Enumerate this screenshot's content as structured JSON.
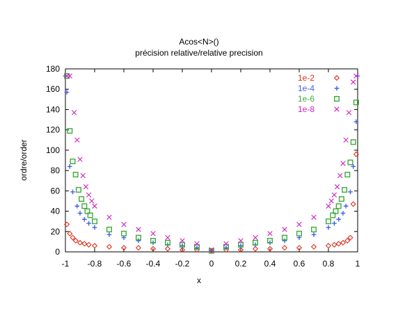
{
  "chart_data": {
    "type": "scatter",
    "title": "Acos<N>()",
    "subtitle": "précision relative/relative precision",
    "xlabel": "x",
    "ylabel": "ordre/order",
    "xlim": [
      -1,
      1
    ],
    "ylim": [
      0,
      180
    ],
    "xticks": [
      "-1",
      "-0.8",
      "-0.6",
      "-0.4",
      "-0.2",
      "0",
      "0.2",
      "0.4",
      "0.6",
      "0.8",
      "1"
    ],
    "yticks": [
      "0",
      "20",
      "40",
      "60",
      "80",
      "100",
      "120",
      "140",
      "160",
      "180"
    ],
    "legend_position": "top-right",
    "grid": false,
    "series": [
      {
        "name": "1e-2",
        "marker": "diamond",
        "color": "#e0301e",
        "x": [
          -0.99,
          -0.97,
          -0.95,
          -0.93,
          -0.9,
          -0.87,
          -0.84,
          -0.8,
          -0.7,
          -0.6,
          -0.5,
          -0.4,
          -0.3,
          -0.2,
          -0.1,
          0,
          0.1,
          0.2,
          0.3,
          0.4,
          0.5,
          0.6,
          0.7,
          0.8,
          0.84,
          0.87,
          0.9,
          0.93,
          0.95,
          0.97,
          0.99
        ],
        "y": [
          27,
          18,
          14,
          11,
          9,
          8,
          7,
          6,
          5,
          4,
          4,
          3,
          3,
          2,
          2,
          1,
          2,
          2,
          3,
          3,
          4,
          4,
          5,
          6,
          7,
          8,
          9,
          11,
          14,
          47,
          96
        ]
      },
      {
        "name": "1e-4",
        "marker": "plus",
        "color": "#4060e8",
        "x": [
          -1,
          -0.99,
          -0.97,
          -0.95,
          -0.92,
          -0.9,
          -0.87,
          -0.84,
          -0.8,
          -0.7,
          -0.6,
          -0.5,
          -0.4,
          -0.3,
          -0.2,
          -0.1,
          0,
          0.1,
          0.2,
          0.3,
          0.4,
          0.5,
          0.6,
          0.7,
          0.8,
          0.84,
          0.87,
          0.9,
          0.92,
          0.95,
          0.97,
          0.99,
          1
        ],
        "y": [
          173,
          157,
          84,
          59,
          45,
          38,
          32,
          28,
          24,
          17,
          14,
          11,
          9,
          7,
          6,
          4,
          1,
          4,
          6,
          7,
          9,
          11,
          14,
          17,
          24,
          28,
          32,
          38,
          45,
          59,
          84,
          128,
          173
        ]
      },
      {
        "name": "1e-6",
        "marker": "square",
        "color": "#3caa3c",
        "x": [
          -0.99,
          -0.97,
          -0.95,
          -0.93,
          -0.91,
          -0.89,
          -0.87,
          -0.85,
          -0.83,
          -0.8,
          -0.7,
          -0.6,
          -0.5,
          -0.4,
          -0.3,
          -0.2,
          -0.1,
          0,
          0.1,
          0.2,
          0.3,
          0.4,
          0.5,
          0.6,
          0.7,
          0.8,
          0.83,
          0.85,
          0.87,
          0.89,
          0.91,
          0.93,
          0.95,
          0.97,
          0.99
        ],
        "y": [
          173,
          119,
          89,
          76,
          61,
          52,
          45,
          40,
          36,
          30,
          22,
          18,
          14,
          11,
          9,
          7,
          5,
          1,
          5,
          7,
          9,
          11,
          14,
          18,
          22,
          30,
          36,
          40,
          45,
          52,
          61,
          76,
          88,
          108,
          147
        ]
      },
      {
        "name": "1e-8",
        "marker": "cross",
        "color": "#d020c0",
        "x": [
          -0.99,
          -0.97,
          -0.94,
          -0.92,
          -0.9,
          -0.88,
          -0.86,
          -0.84,
          -0.82,
          -0.8,
          -0.7,
          -0.6,
          -0.5,
          -0.4,
          -0.3,
          -0.2,
          -0.1,
          0,
          0.1,
          0.2,
          0.3,
          0.4,
          0.5,
          0.6,
          0.7,
          0.8,
          0.82,
          0.84,
          0.86,
          0.88,
          0.9,
          0.92,
          0.94,
          0.97,
          0.99
        ],
        "y": [
          173,
          173,
          137,
          110,
          91,
          75,
          64,
          56,
          50,
          45,
          34,
          27,
          22,
          18,
          14,
          11,
          8,
          2,
          8,
          11,
          14,
          18,
          22,
          27,
          34,
          45,
          50,
          56,
          64,
          75,
          87,
          110,
          137,
          167,
          173
        ]
      }
    ]
  }
}
